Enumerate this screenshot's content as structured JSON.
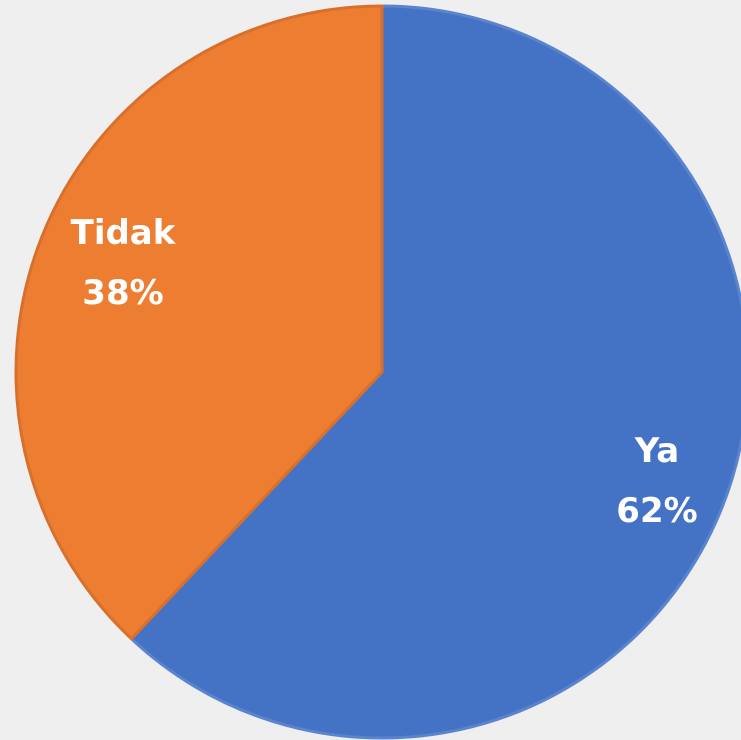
{
  "chart_data": {
    "type": "pie",
    "title": "",
    "slices": [
      {
        "label": "Ya",
        "value": 62,
        "display": "62%",
        "color": "#4472c4",
        "stroke": "#5b84cf"
      },
      {
        "label": "Tidak",
        "value": 38,
        "display": "38%",
        "color": "#ed7d31",
        "stroke": "#d8702b"
      }
    ],
    "start_angle": "12 o'clock",
    "direction": "clockwise",
    "legend": "none",
    "background": "#efefef"
  }
}
